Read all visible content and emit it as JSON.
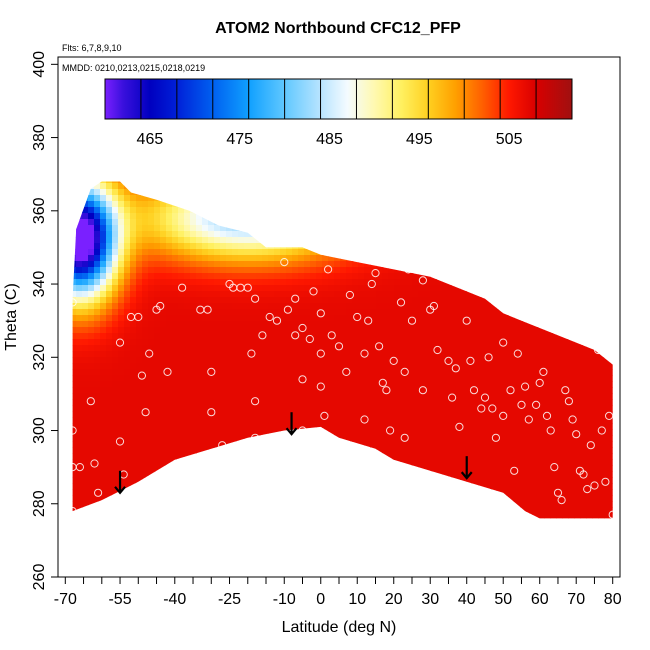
{
  "chart_data": {
    "type": "heatmap",
    "title": "ATOM2 Northbound CFC12_PFP",
    "flights_note": "Flts: 6,7,8,9,10",
    "dates_note": "MMDD: 0210,0213,0215,0218,0219",
    "xlabel": "Latitude (deg N)",
    "ylabel": "Theta (C)",
    "xlim": [
      -72,
      82
    ],
    "ylim": [
      260,
      402
    ],
    "x_ticks": [
      -70,
      -55,
      -40,
      -25,
      -10,
      0,
      10,
      20,
      30,
      40,
      50,
      60,
      70,
      80
    ],
    "x_minor_ticks": [
      -65,
      -60,
      -50,
      -45,
      -35,
      -30,
      -20,
      -15,
      -5,
      5,
      15,
      25,
      35,
      45,
      55,
      65,
      75
    ],
    "y_ticks": [
      260,
      280,
      300,
      320,
      340,
      360,
      380,
      400
    ],
    "colorbar": {
      "range": [
        460,
        512
      ],
      "labels": [
        465,
        475,
        485,
        495,
        505
      ],
      "stops": [
        {
          "v": 460,
          "c": "#7a20ff"
        },
        {
          "v": 462,
          "c": "#3a10dd"
        },
        {
          "v": 465,
          "c": "#0000c0"
        },
        {
          "v": 468,
          "c": "#0020d8"
        },
        {
          "v": 472,
          "c": "#0060f0"
        },
        {
          "v": 476,
          "c": "#10a0ff"
        },
        {
          "v": 480,
          "c": "#60c8ff"
        },
        {
          "v": 484,
          "c": "#b8e4ff"
        },
        {
          "v": 487,
          "c": "#f4fbff"
        },
        {
          "v": 490,
          "c": "#fff9b0"
        },
        {
          "v": 493,
          "c": "#fff060"
        },
        {
          "v": 496,
          "c": "#ffd020"
        },
        {
          "v": 499,
          "c": "#ffa000"
        },
        {
          "v": 502,
          "c": "#ff6000"
        },
        {
          "v": 505,
          "c": "#ff1800"
        },
        {
          "v": 508,
          "c": "#d80000"
        },
        {
          "v": 512,
          "c": "#a01010"
        }
      ]
    },
    "field_boundary_top": [
      [
        -68,
        336
      ],
      [
        -67,
        355
      ],
      [
        -63,
        366
      ],
      [
        -60,
        368
      ],
      [
        -55,
        368
      ],
      [
        -52,
        365
      ],
      [
        -45,
        363
      ],
      [
        -36,
        360
      ],
      [
        -28,
        356
      ],
      [
        -20,
        354
      ],
      [
        -15,
        350
      ],
      [
        -5,
        350
      ],
      [
        0,
        348
      ],
      [
        10,
        346
      ],
      [
        20,
        344
      ],
      [
        30,
        342
      ],
      [
        40,
        338
      ],
      [
        45,
        336
      ],
      [
        50,
        332
      ],
      [
        55,
        330
      ],
      [
        60,
        328
      ],
      [
        70,
        324
      ],
      [
        75,
        322
      ],
      [
        80,
        318
      ]
    ],
    "field_boundary_bottom": [
      [
        80,
        276
      ],
      [
        60,
        276
      ],
      [
        56,
        278
      ],
      [
        50,
        283
      ],
      [
        40,
        286
      ],
      [
        30,
        289
      ],
      [
        20,
        292
      ],
      [
        15,
        295
      ],
      [
        5,
        298
      ],
      [
        0,
        301
      ],
      [
        -10,
        300
      ],
      [
        -20,
        298
      ],
      [
        -30,
        295
      ],
      [
        -40,
        292
      ],
      [
        -50,
        286
      ],
      [
        -60,
        281
      ],
      [
        -68,
        278
      ]
    ],
    "field_model": {
      "background_value": 507,
      "low_center": [
        -66,
        352
      ],
      "low_sigma": [
        7,
        11
      ],
      "low_depth": 52,
      "band_center": [
        -20,
        358
      ],
      "band_sigma": [
        20,
        8
      ],
      "band_depth": 25
    },
    "samples": [
      [
        -68,
        360
      ],
      [
        -68,
        335
      ],
      [
        -68,
        300
      ],
      [
        -68,
        290
      ],
      [
        -68,
        278
      ],
      [
        -66,
        290
      ],
      [
        -63,
        308
      ],
      [
        -62,
        291
      ],
      [
        -61,
        283
      ],
      [
        -55,
        324
      ],
      [
        -55,
        297
      ],
      [
        -54,
        288
      ],
      [
        -52,
        331
      ],
      [
        -50,
        331
      ],
      [
        -49,
        315
      ],
      [
        -48,
        305
      ],
      [
        -47,
        321
      ],
      [
        -45,
        333
      ],
      [
        -44,
        334
      ],
      [
        -42,
        316
      ],
      [
        -42,
        286
      ],
      [
        -38,
        339
      ],
      [
        -33,
        333
      ],
      [
        -31,
        333
      ],
      [
        -30,
        316
      ],
      [
        -30,
        305
      ],
      [
        -27,
        296
      ],
      [
        -25,
        340
      ],
      [
        -24,
        339
      ],
      [
        -22,
        339
      ],
      [
        -20,
        339
      ],
      [
        -19,
        321
      ],
      [
        -18,
        336
      ],
      [
        -18,
        308
      ],
      [
        -18,
        298
      ],
      [
        -16,
        326
      ],
      [
        -14,
        331
      ],
      [
        -12,
        330
      ],
      [
        -10,
        346
      ],
      [
        -9,
        333
      ],
      [
        -7,
        336
      ],
      [
        -7,
        326
      ],
      [
        -5,
        328
      ],
      [
        -5,
        314
      ],
      [
        -5,
        300
      ],
      [
        -3,
        325
      ],
      [
        -2,
        338
      ],
      [
        0,
        332
      ],
      [
        0,
        321
      ],
      [
        0,
        312
      ],
      [
        1,
        304
      ],
      [
        1,
        299
      ],
      [
        2,
        344
      ],
      [
        3,
        326
      ],
      [
        5,
        323
      ],
      [
        7,
        316
      ],
      [
        8,
        337
      ],
      [
        10,
        331
      ],
      [
        12,
        321
      ],
      [
        12,
        303
      ],
      [
        13,
        330
      ],
      [
        14,
        340
      ],
      [
        15,
        343
      ],
      [
        16,
        323
      ],
      [
        17,
        313
      ],
      [
        18,
        311
      ],
      [
        19,
        300
      ],
      [
        20,
        319
      ],
      [
        22,
        335
      ],
      [
        23,
        316
      ],
      [
        23,
        298
      ],
      [
        24,
        344
      ],
      [
        25,
        330
      ],
      [
        28,
        341
      ],
      [
        28,
        311
      ],
      [
        30,
        333
      ],
      [
        31,
        334
      ],
      [
        32,
        322
      ],
      [
        35,
        319
      ],
      [
        36,
        309
      ],
      [
        37,
        317
      ],
      [
        38,
        301
      ],
      [
        40,
        330
      ],
      [
        41,
        319
      ],
      [
        42,
        311
      ],
      [
        44,
        306
      ],
      [
        45,
        309
      ],
      [
        46,
        320
      ],
      [
        47,
        306
      ],
      [
        48,
        298
      ],
      [
        50,
        324
      ],
      [
        50,
        304
      ],
      [
        52,
        311
      ],
      [
        53,
        289
      ],
      [
        54,
        321
      ],
      [
        55,
        307
      ],
      [
        56,
        312
      ],
      [
        57,
        303
      ],
      [
        59,
        307
      ],
      [
        60,
        313
      ],
      [
        61,
        316
      ],
      [
        62,
        304
      ],
      [
        63,
        300
      ],
      [
        64,
        290
      ],
      [
        65,
        283
      ],
      [
        66,
        281
      ],
      [
        67,
        311
      ],
      [
        68,
        308
      ],
      [
        69,
        303
      ],
      [
        70,
        299
      ],
      [
        71,
        289
      ],
      [
        72,
        288
      ],
      [
        73,
        284
      ],
      [
        74,
        296
      ],
      [
        75,
        285
      ],
      [
        76,
        322
      ],
      [
        77,
        300
      ],
      [
        78,
        286
      ],
      [
        79,
        304
      ],
      [
        80,
        277
      ]
    ],
    "arrows": [
      {
        "x": -55,
        "y_from": 289,
        "y_to": 283
      },
      {
        "x": -8,
        "y_from": 305,
        "y_to": 299
      },
      {
        "x": 40,
        "y_from": 293,
        "y_to": 287
      }
    ]
  }
}
